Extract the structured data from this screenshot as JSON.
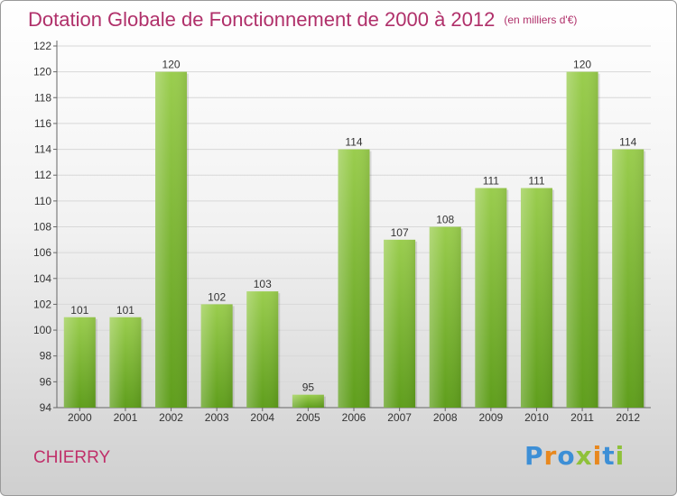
{
  "header": {
    "title": "Dotation Globale de Fonctionnement de 2000 à 2012",
    "unit": "(en milliers d'€)"
  },
  "footer": {
    "commune": "CHIERRY",
    "logo_text": "Proxiti"
  },
  "colors": {
    "title": "#b0306a",
    "bar_top": "#9acd4e",
    "bar_bottom": "#5f9e1c",
    "logo": [
      "#3d8fd6",
      "#e8881e",
      "#3d8fd6",
      "#8fc13a",
      "#e8881e",
      "#3d8fd6",
      "#8fc13a"
    ]
  },
  "chart_data": {
    "type": "bar",
    "title": "Dotation Globale de Fonctionnement de 2000 à 2012",
    "subtitle": "(en milliers d'€)",
    "categories": [
      "2000",
      "2001",
      "2002",
      "2003",
      "2004",
      "2005",
      "2006",
      "2007",
      "2008",
      "2009",
      "2010",
      "2011",
      "2012"
    ],
    "values": [
      101,
      101,
      120,
      102,
      103,
      95,
      114,
      107,
      108,
      111,
      111,
      120,
      114
    ],
    "ylim": [
      94,
      122
    ],
    "yticks": [
      94,
      96,
      98,
      100,
      102,
      104,
      106,
      108,
      110,
      112,
      114,
      116,
      118,
      120,
      122
    ],
    "grid": true,
    "xlabel": "",
    "ylabel": ""
  }
}
